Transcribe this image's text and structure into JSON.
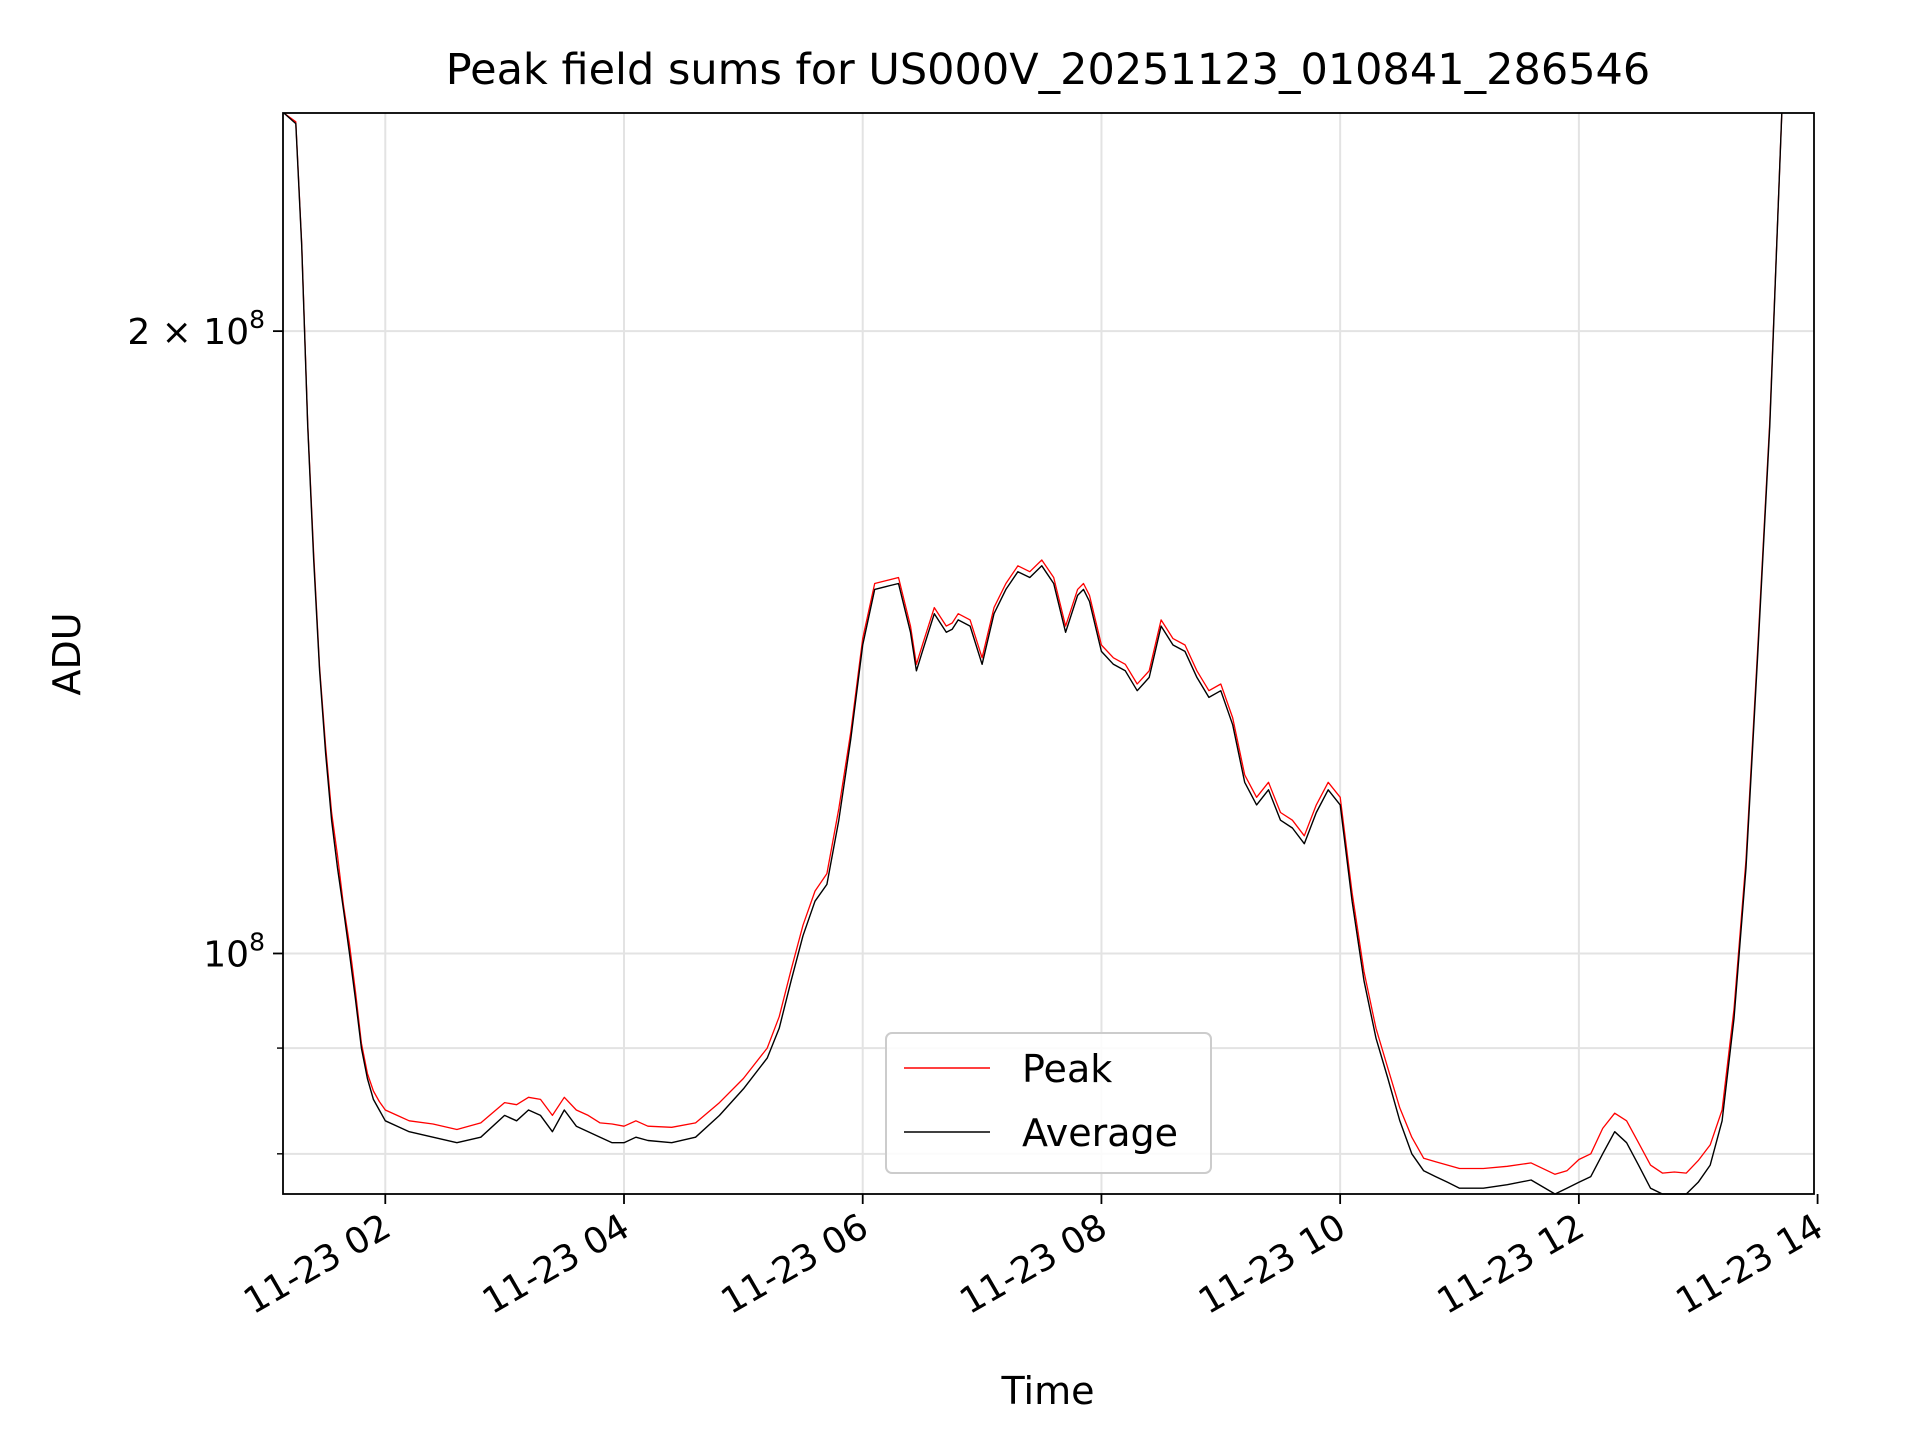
{
  "chart_data": {
    "type": "line",
    "title": "Peak field sums for US000V_20251123_010841_286546",
    "xlabel": "Time",
    "ylabel": "ADU",
    "yscale": "log",
    "ylim": [
      76500000,
      255000000
    ],
    "xlim_hours": [
      1.143,
      13.97
    ],
    "grid": true,
    "legend_position": "lower center",
    "x_ticks": [
      {
        "hour": 2,
        "label": "11-23 02"
      },
      {
        "hour": 4,
        "label": "11-23 04"
      },
      {
        "hour": 6,
        "label": "11-23 06"
      },
      {
        "hour": 8,
        "label": "11-23 08"
      },
      {
        "hour": 10,
        "label": "11-23 10"
      },
      {
        "hour": 12,
        "label": "11-23 12"
      },
      {
        "hour": 14,
        "label": "11-23 14"
      }
    ],
    "y_major_ticks": [
      {
        "value": 100000000,
        "base": "10",
        "exp": "8"
      },
      {
        "value": 200000000,
        "base": "2 × 10",
        "exp": "8"
      }
    ],
    "y_minor_ticks": [
      80000000,
      90000000
    ],
    "series": [
      {
        "name": "Peak",
        "color": "#ff0000"
      },
      {
        "name": "Average",
        "color": "#000000"
      }
    ],
    "x_hours": [
      1.15,
      1.25,
      1.3,
      1.35,
      1.4,
      1.45,
      1.5,
      1.55,
      1.6,
      1.65,
      1.7,
      1.75,
      1.8,
      1.85,
      1.9,
      1.95,
      2.0,
      2.1,
      2.2,
      2.4,
      2.6,
      2.8,
      3.0,
      3.1,
      3.2,
      3.3,
      3.4,
      3.5,
      3.6,
      3.7,
      3.8,
      3.9,
      4.0,
      4.1,
      4.2,
      4.4,
      4.6,
      4.8,
      5.0,
      5.2,
      5.3,
      5.4,
      5.5,
      5.6,
      5.7,
      5.8,
      5.9,
      6.0,
      6.1,
      6.2,
      6.3,
      6.4,
      6.45,
      6.5,
      6.6,
      6.7,
      6.75,
      6.8,
      6.9,
      7.0,
      7.1,
      7.2,
      7.3,
      7.4,
      7.5,
      7.6,
      7.7,
      7.8,
      7.85,
      7.9,
      8.0,
      8.1,
      8.2,
      8.3,
      8.4,
      8.5,
      8.6,
      8.7,
      8.8,
      8.9,
      9.0,
      9.1,
      9.2,
      9.3,
      9.4,
      9.5,
      9.6,
      9.7,
      9.8,
      9.9,
      10.0,
      10.1,
      10.2,
      10.3,
      10.4,
      10.5,
      10.6,
      10.7,
      10.8,
      10.9,
      11.0,
      11.2,
      11.4,
      11.6,
      11.8,
      11.9,
      12.0,
      12.1,
      12.2,
      12.3,
      12.4,
      12.5,
      12.6,
      12.7,
      12.8,
      12.9,
      13.0,
      13.1,
      13.2,
      13.3,
      13.4,
      13.5,
      13.6,
      13.7,
      13.8,
      13.9
    ],
    "average": [
      255000000,
      252000000,
      220000000,
      180000000,
      155000000,
      137000000,
      125000000,
      116000000,
      110000000,
      105000000,
      100000000,
      95000000,
      90000000,
      87000000,
      85000000,
      84000000,
      83000000,
      82500000,
      82000000,
      81500000,
      81000000,
      81500000,
      83500000,
      83000000,
      84000000,
      83500000,
      82000000,
      84000000,
      82500000,
      82000000,
      81500000,
      81000000,
      81000000,
      81500000,
      81200000,
      81000000,
      81500000,
      83500000,
      86000000,
      89000000,
      92000000,
      97000000,
      102000000,
      106000000,
      108000000,
      116000000,
      127000000,
      141000000,
      150000000,
      150500000,
      151000000,
      143000000,
      137000000,
      140000000,
      146000000,
      143000000,
      143500000,
      145000000,
      144000000,
      138000000,
      146000000,
      150000000,
      153000000,
      152000000,
      154000000,
      151000000,
      143000000,
      149000000,
      150000000,
      148000000,
      140000000,
      138000000,
      137000000,
      134000000,
      136000000,
      144000000,
      141000000,
      140000000,
      136000000,
      133000000,
      134000000,
      129000000,
      121000000,
      118000000,
      120000000,
      116000000,
      115000000,
      113000000,
      117000000,
      120000000,
      118000000,
      106000000,
      97000000,
      91000000,
      87000000,
      83000000,
      80000000,
      78500000,
      78000000,
      77500000,
      77000000,
      77000000,
      77300000,
      77700000,
      76500000,
      77000000,
      77500000,
      78000000,
      80000000,
      82000000,
      81000000,
      79000000,
      77000000,
      76500000,
      76500000,
      76500000,
      77500000,
      79000000,
      83000000,
      93000000,
      110000000,
      140000000,
      180000000,
      255000000
    ],
    "peak": [
      255500000,
      252500000,
      220500000,
      180500000,
      156000000,
      137500000,
      126000000,
      117000000,
      111500000,
      105500000,
      101000000,
      95800000,
      90500000,
      87500000,
      85800000,
      84800000,
      84000000,
      83500000,
      83000000,
      82700000,
      82200000,
      82800000,
      84700000,
      84500000,
      85200000,
      85000000,
      83500000,
      85200000,
      84000000,
      83500000,
      82800000,
      82700000,
      82500000,
      83000000,
      82500000,
      82400000,
      82800000,
      84700000,
      87000000,
      90000000,
      93200000,
      98200000,
      103200000,
      107200000,
      109300000,
      117500000,
      128000000,
      142000000,
      151000000,
      151500000,
      152000000,
      144000000,
      138000000,
      141000000,
      147000000,
      144000000,
      144500000,
      146000000,
      145000000,
      139000000,
      147000000,
      151000000,
      154000000,
      153000000,
      155000000,
      152000000,
      144000000,
      150000000,
      151000000,
      149000000,
      141000000,
      139000000,
      138000000,
      135000000,
      137000000,
      145000000,
      142000000,
      141000000,
      137000000,
      134000000,
      135000000,
      130000000,
      122000000,
      119000000,
      121000000,
      117000000,
      116000000,
      114000000,
      118000000,
      121000000,
      119000000,
      107000000,
      98000000,
      92000000,
      88000000,
      84200000,
      81500000,
      79600000,
      79300000,
      79000000,
      78700000,
      78700000,
      78900000,
      79200000,
      78200000,
      78500000,
      79500000,
      80000000,
      82300000,
      83700000,
      83000000,
      81000000,
      79000000,
      78300000,
      78400000,
      78300000,
      79400000,
      80800000,
      84000000,
      94000000,
      111000000,
      141000000,
      181000000,
      255500000
    ]
  }
}
